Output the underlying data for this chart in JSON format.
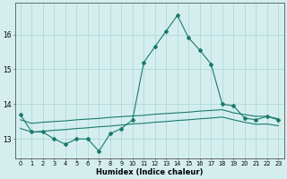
{
  "x": [
    0,
    1,
    2,
    3,
    4,
    5,
    6,
    7,
    8,
    9,
    10,
    11,
    12,
    13,
    14,
    15,
    16,
    17,
    18,
    19,
    20,
    21,
    22,
    23
  ],
  "humidex": [
    13.7,
    13.2,
    13.2,
    13.0,
    12.85,
    13.0,
    13.0,
    12.65,
    13.15,
    13.3,
    13.55,
    15.2,
    15.65,
    16.1,
    16.55,
    15.9,
    15.55,
    15.15,
    14.0,
    13.95,
    13.6,
    13.55,
    13.65,
    13.55
  ],
  "upper": [
    13.55,
    13.45,
    13.48,
    13.5,
    13.52,
    13.55,
    13.57,
    13.59,
    13.62,
    13.64,
    13.66,
    13.68,
    13.71,
    13.73,
    13.75,
    13.77,
    13.8,
    13.82,
    13.84,
    13.75,
    13.7,
    13.65,
    13.65,
    13.58
  ],
  "lower": [
    13.3,
    13.2,
    13.22,
    13.25,
    13.27,
    13.3,
    13.32,
    13.35,
    13.37,
    13.4,
    13.43,
    13.45,
    13.48,
    13.5,
    13.53,
    13.55,
    13.58,
    13.6,
    13.63,
    13.55,
    13.48,
    13.42,
    13.43,
    13.38
  ],
  "line_color": "#1a7a6e",
  "bg_color": "#d4eeee",
  "grid_color": "#aad4d4",
  "xlabel": "Humidex (Indice chaleur)",
  "yticks": [
    13,
    14,
    15,
    16
  ],
  "ylim": [
    12.45,
    16.9
  ],
  "xlim": [
    -0.5,
    23.5
  ]
}
